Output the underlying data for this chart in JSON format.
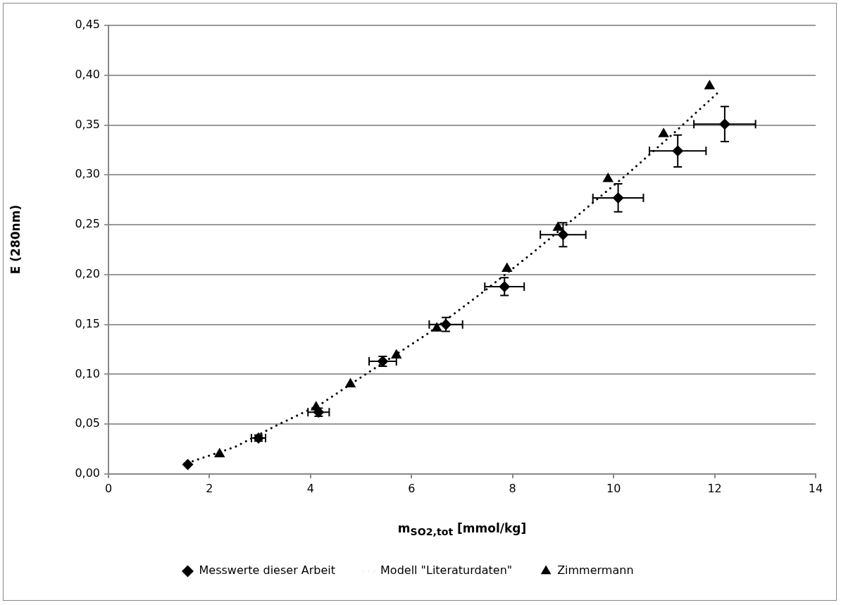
{
  "chart_data": {
    "type": "scatter",
    "xlabel": "m$_{SO2,tot}$ [mmol/kg]",
    "ylabel": "E (280nm)",
    "xlim": [
      0,
      14
    ],
    "xticks": [
      0,
      2,
      4,
      6,
      8,
      10,
      12,
      14
    ],
    "ylim": [
      0,
      0.45
    ],
    "yticks": [
      {
        "value": 0,
        "label": "0,00"
      },
      {
        "value": 0.05,
        "label": "0,05"
      },
      {
        "value": 0.1,
        "label": "0,10"
      },
      {
        "value": 0.15,
        "label": "0,15"
      },
      {
        "value": 0.2,
        "label": "0,20"
      },
      {
        "value": 0.25,
        "label": "0,25"
      },
      {
        "value": 0.3,
        "label": "0,30"
      },
      {
        "value": 0.35,
        "label": "0,35"
      },
      {
        "value": 0.4,
        "label": "0,40"
      },
      {
        "value": 0.45,
        "label": "0,45"
      }
    ],
    "grid": "y",
    "legend": "bottom",
    "series": [
      {
        "name": "Messwerte dieser Arbeit",
        "type": "scatter",
        "marker": "diamond",
        "color": "#000000",
        "x": [
          1.57,
          2.97,
          4.16,
          5.43,
          6.68,
          7.84,
          9.0,
          10.09,
          11.27,
          12.2
        ],
        "values": [
          0.0096,
          0.036,
          0.062,
          0.113,
          0.15,
          0.188,
          0.24,
          0.277,
          0.324,
          0.351
        ],
        "errors": [
          null,
          0.003,
          0.004,
          0.005,
          0.007,
          0.009,
          0.012,
          0.014,
          0.016,
          0.0175
        ],
        "xerrors": [
          null,
          0.14,
          0.21,
          0.27,
          0.33,
          0.39,
          0.45,
          0.5,
          0.56,
          0.61
        ]
      },
      {
        "name": "Modell \"Literaturdaten\"",
        "type": "line",
        "marker": "none",
        "line_style": "dotted",
        "color": "#000000",
        "x": [
          1.56,
          2.5,
          3.34,
          4.2,
          5.15,
          6.3,
          7.48,
          8.4,
          9.4,
          10.3,
          11.15,
          12.12
        ],
        "values": [
          0.011,
          0.027,
          0.049,
          0.07,
          0.102,
          0.14,
          0.185,
          0.222,
          0.264,
          0.302,
          0.34,
          0.385
        ]
      },
      {
        "name": "Zimmermann",
        "type": "scatter",
        "marker": "triangle",
        "color": "#000000",
        "x": [
          2.2,
          4.11,
          4.79,
          5.7,
          6.5,
          7.89,
          8.9,
          9.89,
          10.99,
          11.9
        ],
        "values": [
          0.02,
          0.067,
          0.09,
          0.119,
          0.146,
          0.206,
          0.247,
          0.296,
          0.341,
          0.389
        ]
      }
    ]
  }
}
